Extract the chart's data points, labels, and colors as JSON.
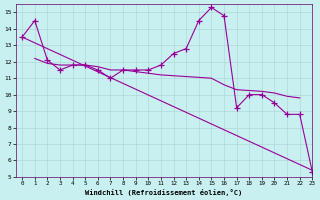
{
  "xlabel": "Windchill (Refroidissement éolien,°C)",
  "bg_color": "#c8f0f0",
  "line_color": "#990099",
  "xlim": [
    -0.5,
    23
  ],
  "ylim": [
    5,
    15.5
  ],
  "xticks": [
    0,
    1,
    2,
    3,
    4,
    5,
    6,
    7,
    8,
    9,
    10,
    11,
    12,
    13,
    14,
    15,
    16,
    17,
    18,
    19,
    20,
    21,
    22,
    23
  ],
  "yticks": [
    5,
    6,
    7,
    8,
    9,
    10,
    11,
    12,
    13,
    14,
    15
  ],
  "line1_x": [
    0,
    1,
    2,
    3,
    4,
    5,
    6,
    7,
    8,
    9,
    10,
    11,
    12,
    13,
    14,
    15,
    16,
    17,
    18,
    19,
    20,
    21,
    22,
    23
  ],
  "line1_y": [
    13.5,
    14.5,
    12.1,
    11.5,
    11.8,
    11.8,
    11.5,
    11.0,
    11.5,
    11.5,
    11.5,
    11.8,
    12.5,
    12.8,
    14.5,
    15.3,
    14.8,
    9.2,
    10.0,
    10.0,
    9.5,
    8.8,
    8.8,
    5.3
  ],
  "line2_x": [
    1,
    2,
    3,
    4,
    5,
    6,
    7,
    8,
    9,
    10,
    11,
    12,
    13,
    14,
    15,
    16,
    17,
    18,
    19,
    20,
    21,
    22
  ],
  "line2_y": [
    12.2,
    11.9,
    11.8,
    11.8,
    11.8,
    11.7,
    11.5,
    11.5,
    11.4,
    11.3,
    11.2,
    11.15,
    11.1,
    11.05,
    11.0,
    10.6,
    10.3,
    10.25,
    10.2,
    10.1,
    9.9,
    9.8
  ],
  "line3_x": [
    0,
    23
  ],
  "line3_y": [
    13.5,
    5.4
  ]
}
